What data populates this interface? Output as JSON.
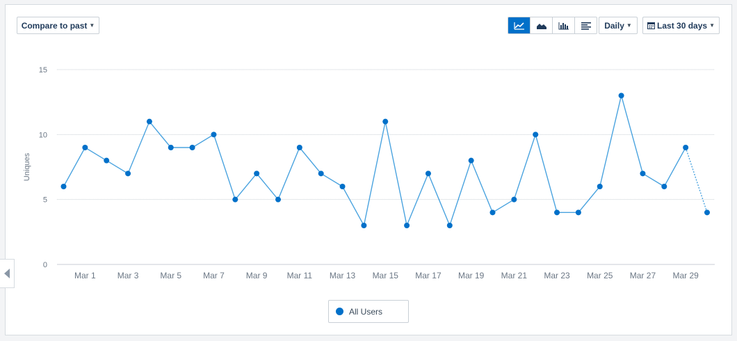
{
  "toolbar": {
    "compare_label": "Compare to past",
    "interval_label": "Daily",
    "range_label": "Last 30 days",
    "views": [
      "line-chart-icon",
      "area-chart-icon",
      "bar-chart-icon",
      "table-view-icon"
    ],
    "active_view": 0
  },
  "legend": {
    "label": "All Users",
    "color": "#0070c9"
  },
  "colors": {
    "accent": "#0070c9",
    "grid": "#c8ced4",
    "axis_text": "#6b7785",
    "line": "#4aa3df"
  },
  "chart_data": {
    "type": "line",
    "ylabel": "Uniques",
    "ylim": [
      0,
      15
    ],
    "yticks": [
      0,
      5,
      10,
      15
    ],
    "ytick_labels": [
      "0",
      "5",
      "10",
      "15"
    ],
    "x": [
      "Feb 29",
      "Mar 1",
      "Mar 2",
      "Mar 3",
      "Mar 4",
      "Mar 5",
      "Mar 6",
      "Mar 7",
      "Mar 8",
      "Mar 9",
      "Mar 10",
      "Mar 11",
      "Mar 12",
      "Mar 13",
      "Mar 14",
      "Mar 15",
      "Mar 16",
      "Mar 17",
      "Mar 18",
      "Mar 19",
      "Mar 20",
      "Mar 21",
      "Mar 22",
      "Mar 23",
      "Mar 24",
      "Mar 25",
      "Mar 26",
      "Mar 27",
      "Mar 28",
      "Mar 29",
      "Mar 30"
    ],
    "xtick_labels": [
      "Mar 1",
      "Mar 3",
      "Mar 5",
      "Mar 7",
      "Mar 9",
      "Mar 11",
      "Mar 13",
      "Mar 15",
      "Mar 17",
      "Mar 19",
      "Mar 21",
      "Mar 23",
      "Mar 25",
      "Mar 27",
      "Mar 29"
    ],
    "series": [
      {
        "name": "All Users",
        "color": "#0070c9",
        "values": [
          6,
          9,
          8,
          7,
          11,
          9,
          9,
          10,
          5,
          7,
          5,
          9,
          7,
          6,
          3,
          11,
          3,
          7,
          3,
          8,
          4,
          5,
          10,
          4,
          4,
          6,
          13,
          7,
          6,
          9,
          4
        ],
        "incomplete_from_index": 29
      }
    ],
    "grid": true
  }
}
